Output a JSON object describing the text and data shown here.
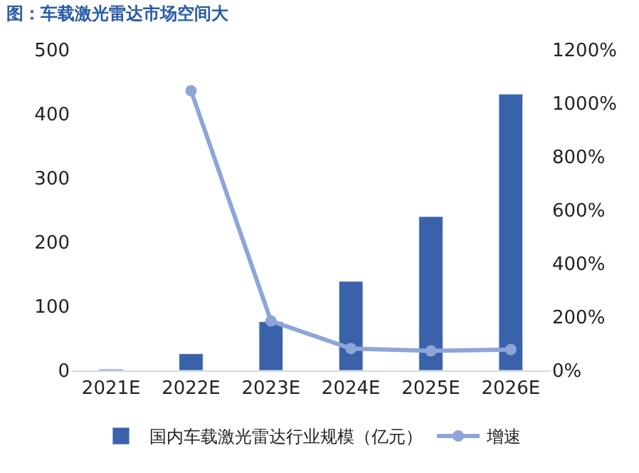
{
  "chart_data": {
    "type": "bar",
    "title": "图：车载激光雷达市场空间大",
    "categories": [
      "2021E",
      "2022E",
      "2023E",
      "2024E",
      "2025E",
      "2026E"
    ],
    "series": [
      {
        "name": "国内车载激光雷达行业规模（亿元）",
        "color": "#3a62aa",
        "values": [
          2,
          26,
          76,
          139,
          240,
          431
        ]
      },
      {
        "name": "增速",
        "type": "line",
        "axis": "y2",
        "color": "#8ea5d8",
        "marker": "circle",
        "values": [
          null,
          1047,
          185,
          82,
          73,
          78
        ]
      }
    ],
    "ylim": [
      0,
      500
    ],
    "yticks": [
      0,
      100,
      200,
      300,
      400,
      500
    ],
    "y2lim": [
      0,
      1200
    ],
    "y2ticks": [
      {
        "value": 0,
        "label": "0%"
      },
      {
        "value": 200,
        "label": "200%"
      },
      {
        "value": 400,
        "label": "400%"
      },
      {
        "value": 600,
        "label": "600%"
      },
      {
        "value": 800,
        "label": "800%"
      },
      {
        "value": 1000,
        "label": "1000%"
      },
      {
        "value": 1200,
        "label": "1200%"
      }
    ],
    "legend": "bottom"
  }
}
